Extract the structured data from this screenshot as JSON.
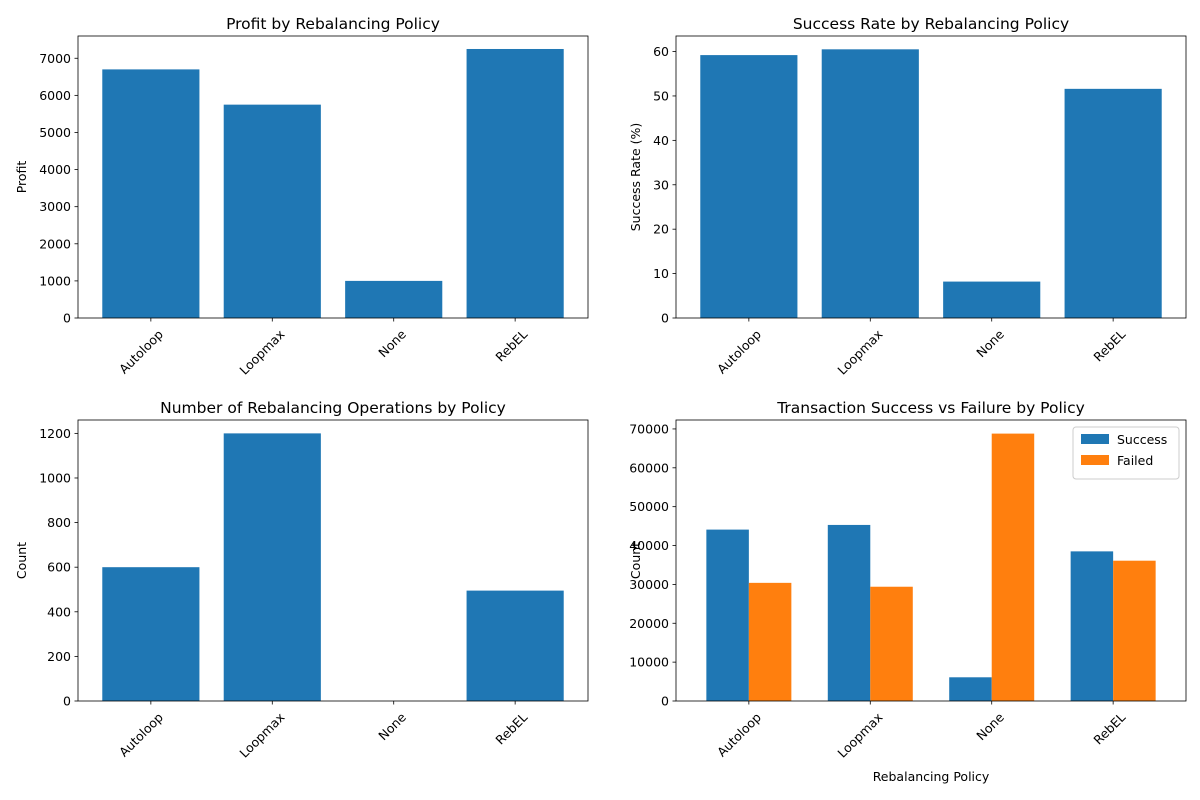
{
  "chart_data": [
    {
      "type": "bar",
      "title": "Profit by Rebalancing Policy",
      "xlabel": "",
      "ylabel": "Profit",
      "categories": [
        "Autoloop",
        "Loopmax",
        "None",
        "RebEL"
      ],
      "series": [
        {
          "values": [
            6700,
            5750,
            1000,
            7250
          ]
        }
      ],
      "ylim": [
        0,
        7600
      ],
      "yticks": [
        0,
        1000,
        2000,
        3000,
        4000,
        5000,
        6000,
        7000
      ],
      "colors": [
        "#1f77b4"
      ],
      "legend": null
    },
    {
      "type": "bar",
      "title": "Success Rate by Rebalancing Policy",
      "xlabel": "",
      "ylabel": "Success Rate (%)",
      "categories": [
        "Autoloop",
        "Loopmax",
        "None",
        "RebEL"
      ],
      "series": [
        {
          "values": [
            59.2,
            60.5,
            8.2,
            51.6
          ]
        }
      ],
      "ylim": [
        0,
        63.5
      ],
      "yticks": [
        0,
        10,
        20,
        30,
        40,
        50,
        60
      ],
      "colors": [
        "#1f77b4"
      ],
      "legend": null
    },
    {
      "type": "bar",
      "title": "Number of Rebalancing Operations by Policy",
      "xlabel": "",
      "ylabel": "Count",
      "categories": [
        "Autoloop",
        "Loopmax",
        "None",
        "RebEL"
      ],
      "series": [
        {
          "values": [
            600,
            1200,
            0,
            495
          ]
        }
      ],
      "ylim": [
        0,
        1260
      ],
      "yticks": [
        0,
        200,
        400,
        600,
        800,
        1000,
        1200
      ],
      "colors": [
        "#1f77b4"
      ],
      "legend": null
    },
    {
      "type": "bar",
      "title": "Transaction Success vs Failure by Policy",
      "xlabel": "Rebalancing Policy",
      "ylabel": "Count",
      "categories": [
        "Autoloop",
        "Loopmax",
        "None",
        "RebEL"
      ],
      "series": [
        {
          "name": "Success",
          "values": [
            44100,
            45300,
            6100,
            38500
          ]
        },
        {
          "name": "Failed",
          "values": [
            30400,
            29400,
            68800,
            36100
          ]
        }
      ],
      "ylim": [
        0,
        72300
      ],
      "yticks": [
        0,
        10000,
        20000,
        30000,
        40000,
        50000,
        60000,
        70000
      ],
      "colors": [
        "#1f77b4",
        "#ff7f0e"
      ],
      "legend": "top-right"
    }
  ]
}
